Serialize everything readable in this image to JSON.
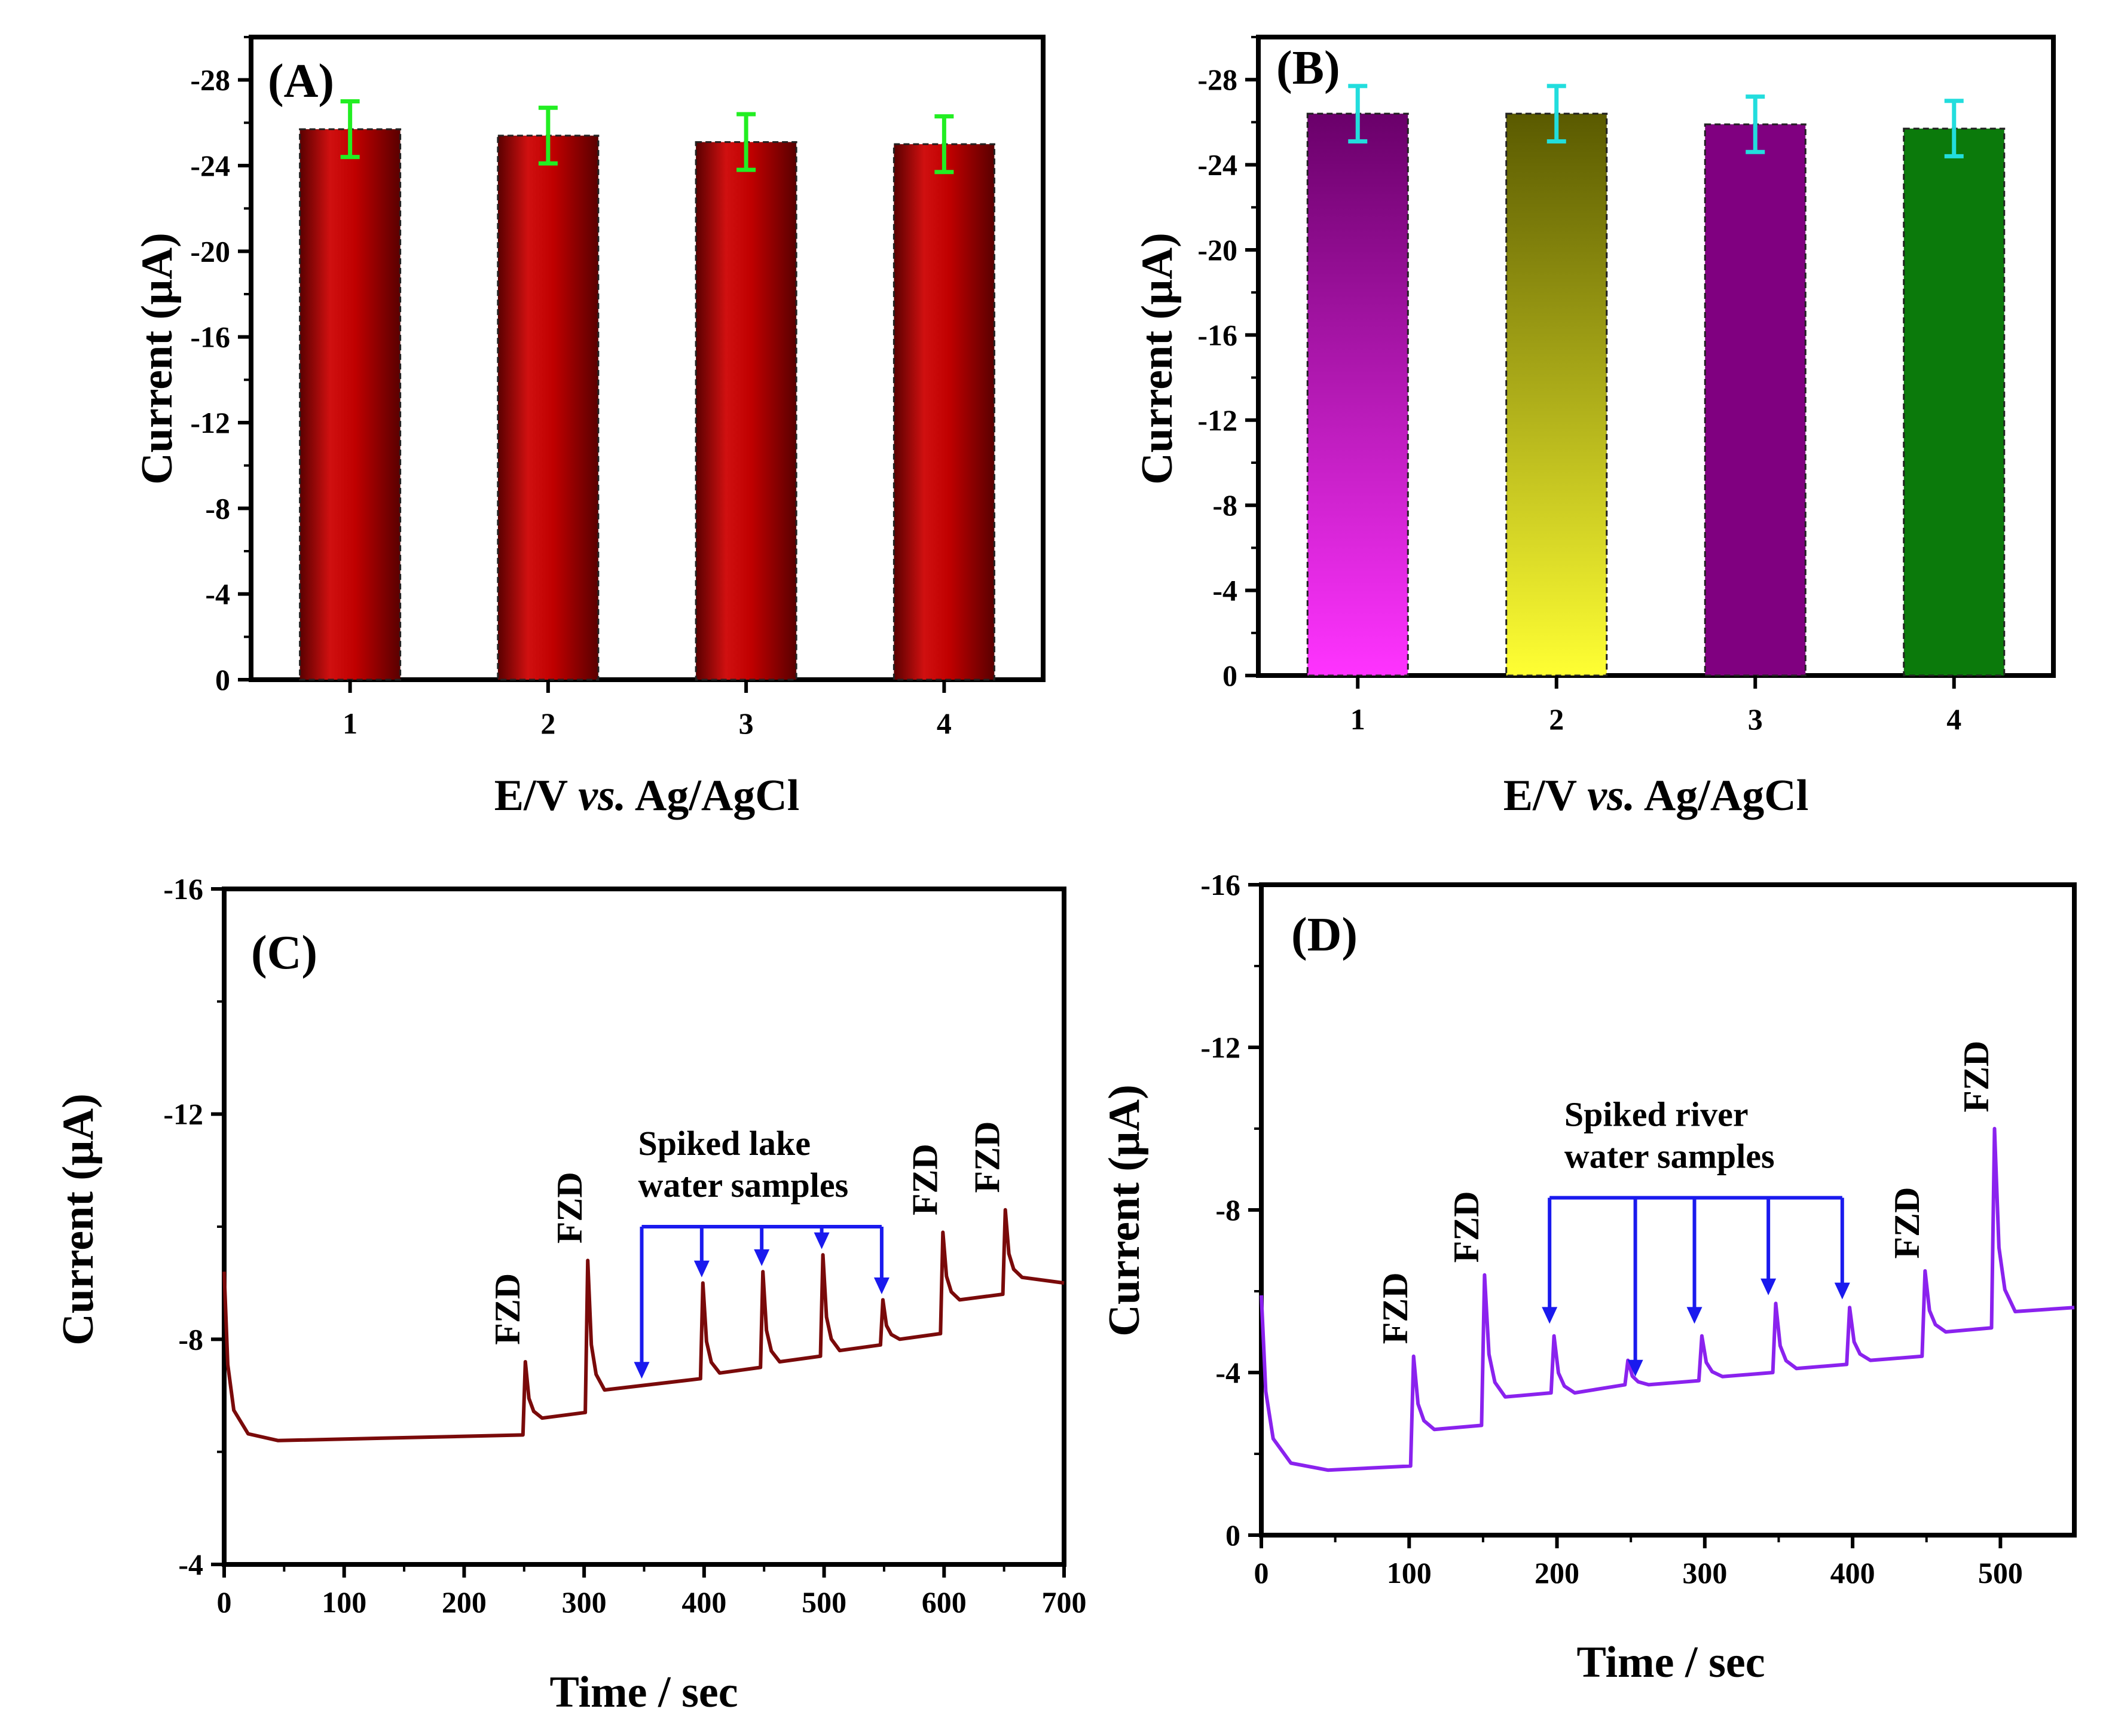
{
  "chart_data": [
    {
      "panel": "A",
      "type": "bar",
      "panel_label": "(A)",
      "xlabel_parts": [
        "E/V ",
        "vs.",
        " Ag/AgCl"
      ],
      "ylabel": "Current (µA)",
      "categories": [
        "1",
        "2",
        "3",
        "4"
      ],
      "values": [
        -25.7,
        -25.4,
        -25.1,
        -25.0
      ],
      "errors": [
        1.3,
        1.3,
        1.3,
        1.3
      ],
      "ylim": [
        0,
        -30
      ],
      "yticks": [
        "0",
        "-4",
        "-8",
        "-12",
        "-16",
        "-20",
        "-24",
        "-28"
      ],
      "bar_colors": [
        "#b01010",
        "#b01010",
        "#b01010",
        "#b01010"
      ],
      "error_color": "#22ee22"
    },
    {
      "panel": "B",
      "type": "bar",
      "panel_label": "(B)",
      "xlabel_parts": [
        "E/V ",
        "vs.",
        " Ag/AgCl"
      ],
      "ylabel": "Current (µA)",
      "categories": [
        "1",
        "2",
        "3",
        "4"
      ],
      "values": [
        -26.4,
        -26.4,
        -25.9,
        -25.7
      ],
      "errors": [
        1.3,
        1.3,
        1.3,
        1.3
      ],
      "ylim": [
        0,
        -30
      ],
      "yticks": [
        "0",
        "-4",
        "-8",
        "-12",
        "-16",
        "-20",
        "-24",
        "-28"
      ],
      "bar_colors": [
        "#ff22ff",
        "#ffff22",
        "#800080",
        "#0b7a0b"
      ],
      "error_color": "#22dddd"
    },
    {
      "panel": "C",
      "type": "line",
      "panel_label": "(C)",
      "xlabel": "Time / sec",
      "ylabel": "Current (µA)",
      "xlim": [
        0,
        700
      ],
      "ylim": [
        -4,
        -16
      ],
      "xticks": [
        "0",
        "100",
        "200",
        "300",
        "400",
        "500",
        "600",
        "700"
      ],
      "yticks": [
        "-4",
        "-8",
        "-12",
        "-16"
      ],
      "line_color": "#7a0a0a",
      "baseline_start": -9.2,
      "baseline_min": -6.2,
      "steps": [
        {
          "t": 250,
          "before": -6.3,
          "after": -6.6,
          "peak": -7.6
        },
        {
          "t": 302,
          "before": -6.7,
          "after": -7.1,
          "peak": -9.4
        },
        {
          "t": 398,
          "before": -7.3,
          "after": -7.4,
          "peak": -9.0
        },
        {
          "t": 448,
          "before": -7.5,
          "after": -7.6,
          "peak": -9.2
        },
        {
          "t": 498,
          "before": -7.7,
          "after": -7.8,
          "peak": -9.5
        },
        {
          "t": 548,
          "before": -7.9,
          "after": -8.0,
          "peak": -8.7
        },
        {
          "t": 598,
          "before": -8.1,
          "after": -8.7,
          "peak": -9.9
        },
        {
          "t": 650,
          "before": -8.8,
          "after": -9.1,
          "peak": -10.3
        }
      ],
      "end_value": -9.0,
      "fzd_labels": [
        {
          "text": "FZD",
          "t": 250,
          "y": -7.9
        },
        {
          "text": "FZD",
          "t": 302,
          "y": -9.7
        },
        {
          "text": "FZD",
          "t": 598,
          "y": -10.2
        },
        {
          "text": "FZD",
          "t": 650,
          "y": -10.6
        }
      ],
      "annotation_lines": [
        "Spiked lake",
        "water samples"
      ],
      "annotation_x": 345,
      "bracket_y": -10.0,
      "bracket_times": [
        348,
        398,
        448,
        498,
        548
      ],
      "arrow_tips": [
        -7.3,
        -9.1,
        -9.3,
        -9.6,
        -8.8
      ],
      "arrow_color": "#1a1aee"
    },
    {
      "panel": "D",
      "type": "line",
      "panel_label": "(D)",
      "xlabel": "Time / sec",
      "ylabel": "Current (µA)",
      "xlim": [
        0,
        550
      ],
      "ylim": [
        0,
        -16
      ],
      "xticks": [
        "0",
        "100",
        "200",
        "300",
        "400",
        "500"
      ],
      "yticks": [
        "0",
        "-4",
        "-8",
        "-12",
        "-16"
      ],
      "line_color": "#8a22ee",
      "baseline_start": -5.9,
      "baseline_min": -1.6,
      "steps": [
        {
          "t": 102,
          "before": -1.7,
          "after": -2.6,
          "peak": -4.4
        },
        {
          "t": 150,
          "before": -2.7,
          "after": -3.4,
          "peak": -6.4
        },
        {
          "t": 197,
          "before": -3.5,
          "after": -3.5,
          "peak": -4.9
        },
        {
          "t": 247,
          "before": -3.7,
          "after": -3.7,
          "peak": -4.3
        },
        {
          "t": 297,
          "before": -3.8,
          "after": -3.9,
          "peak": -4.9
        },
        {
          "t": 347,
          "before": -4.0,
          "after": -4.1,
          "peak": -5.7
        },
        {
          "t": 397,
          "before": -4.2,
          "after": -4.3,
          "peak": -5.6
        },
        {
          "t": 448,
          "before": -4.4,
          "after": -5.0,
          "peak": -6.5
        },
        {
          "t": 495,
          "before": -5.1,
          "after": -5.5,
          "peak": -10.0
        }
      ],
      "end_value": -5.6,
      "fzd_labels": [
        {
          "text": "FZD",
          "t": 102,
          "y": -4.7
        },
        {
          "text": "FZD",
          "t": 150,
          "y": -6.7
        },
        {
          "text": "FZD",
          "t": 448,
          "y": -6.8
        },
        {
          "text": "FZD",
          "t": 495,
          "y": -10.4
        }
      ],
      "annotation_lines": [
        "Spiked river",
        "water samples"
      ],
      "annotation_x": 205,
      "bracket_y": -8.3,
      "bracket_times": [
        195,
        253,
        293,
        343,
        393
      ],
      "arrow_tips": [
        -5.2,
        -3.9,
        -5.2,
        -5.9,
        -5.8
      ],
      "arrow_color": "#1a1aee"
    }
  ]
}
